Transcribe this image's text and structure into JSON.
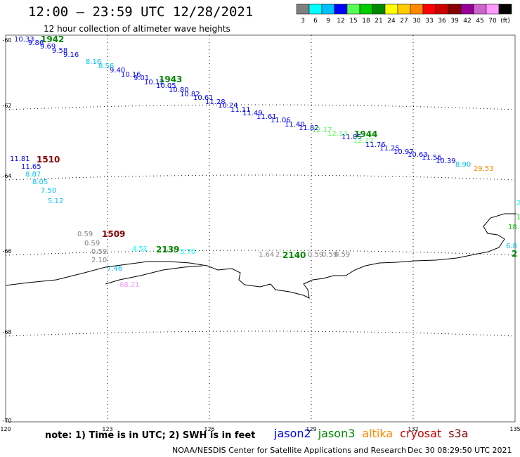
{
  "header": {
    "title": "12:00 – 23:59 UTC 12/28/2021",
    "subtitle": "12 hour collection of altimeter wave heights"
  },
  "colorbar": {
    "colors": [
      "#808080",
      "#00ffff",
      "#00bfff",
      "#0000ff",
      "#55ff55",
      "#00cc00",
      "#008800",
      "#ffff00",
      "#ffcc00",
      "#ff8800",
      "#ff0000",
      "#cc0000",
      "#880000",
      "#990099",
      "#cc66cc",
      "#ff99ff",
      "#000000"
    ],
    "labels": [
      "3",
      "6",
      "9",
      "12",
      "15",
      "18",
      "21",
      "24",
      "27",
      "30",
      "33",
      "36",
      "39",
      "42",
      "45",
      "70",
      "(ft)"
    ]
  },
  "axes": {
    "lat_labels": [
      "-60",
      "-62",
      "-64",
      "-66",
      "-68",
      "-70"
    ],
    "lon_labels": [
      "120",
      "123",
      "126",
      "129",
      "132",
      "135"
    ]
  },
  "passes": [
    {
      "label": "1942",
      "color": "#008800"
    },
    {
      "label": "1943",
      "color": "#008800"
    },
    {
      "label": "1944",
      "color": "#008800"
    },
    {
      "label": "1510",
      "color": "#880000"
    },
    {
      "label": "1509",
      "color": "#880000"
    },
    {
      "label": "2139",
      "color": "#008800"
    },
    {
      "label": "2140",
      "color": "#008800"
    },
    {
      "label": "2",
      "color": "#008800"
    }
  ],
  "wave_heights": [
    {
      "text": "10.33",
      "color": "#0000ff"
    },
    {
      "text": "9.86",
      "color": "#0000ff"
    },
    {
      "text": "9.69",
      "color": "#0000ff"
    },
    {
      "text": "9.58",
      "color": "#0000ff"
    },
    {
      "text": "9.16",
      "color": "#0000ff"
    },
    {
      "text": "8.16",
      "color": "#00bfff"
    },
    {
      "text": "8.56",
      "color": "#00bfff"
    },
    {
      "text": "9.40",
      "color": "#0000ff"
    },
    {
      "text": "10.16",
      "color": "#0000ff"
    },
    {
      "text": "9.01",
      "color": "#0000ff"
    },
    {
      "text": "10.12",
      "color": "#0000ff"
    },
    {
      "text": "10.05",
      "color": "#0000ff"
    },
    {
      "text": "10.80",
      "color": "#0000ff"
    },
    {
      "text": "10.82",
      "color": "#0000ff"
    },
    {
      "text": "10.61",
      "color": "#0000ff"
    },
    {
      "text": "11.28",
      "color": "#0000ff"
    },
    {
      "text": "10.24",
      "color": "#0000ff"
    },
    {
      "text": "11.11",
      "color": "#0000ff"
    },
    {
      "text": "11.49",
      "color": "#0000ff"
    },
    {
      "text": "11.61",
      "color": "#0000ff"
    },
    {
      "text": "11.06",
      "color": "#0000ff"
    },
    {
      "text": "11.40",
      "color": "#0000ff"
    },
    {
      "text": "11.82",
      "color": "#0000ff"
    },
    {
      "text": "12.17",
      "color": "#55ff55"
    },
    {
      "text": "12.13",
      "color": "#55ff55"
    },
    {
      "text": "11.85",
      "color": "#0000ff"
    },
    {
      "text": "12.22",
      "color": "#55ff55"
    },
    {
      "text": "11.76",
      "color": "#0000ff"
    },
    {
      "text": "11.25",
      "color": "#0000ff"
    },
    {
      "text": "10.97",
      "color": "#0000ff"
    },
    {
      "text": "10.63",
      "color": "#0000ff"
    },
    {
      "text": "11.56",
      "color": "#0000ff"
    },
    {
      "text": "10.39",
      "color": "#0000ff"
    },
    {
      "text": "8.90",
      "color": "#00bfff"
    },
    {
      "text": "29.53",
      "color": "#ff8800"
    },
    {
      "text": "11.81",
      "color": "#0000ff"
    },
    {
      "text": "11.65",
      "color": "#0000ff"
    },
    {
      "text": "8.87",
      "color": "#00bfff"
    },
    {
      "text": "8.05",
      "color": "#00bfff"
    },
    {
      "text": "7.50",
      "color": "#00bfff"
    },
    {
      "text": "5.12",
      "color": "#00bfff"
    },
    {
      "text": "0.59",
      "color": "#808080"
    },
    {
      "text": "0.59",
      "color": "#808080"
    },
    {
      "text": "0.59",
      "color": "#808080"
    },
    {
      "text": "2.10",
      "color": "#808080"
    },
    {
      "text": "7.46",
      "color": "#00bfff"
    },
    {
      "text": "68.21",
      "color": "#ff99ff"
    },
    {
      "text": "4.51",
      "color": "#00ffff"
    },
    {
      "text": "3.70",
      "color": "#00ffff"
    },
    {
      "text": "1.64",
      "color": "#808080"
    },
    {
      "text": "2.",
      "color": "#808080"
    },
    {
      "text": "0.59",
      "color": "#808080"
    },
    {
      "text": "0.59",
      "color": "#808080"
    },
    {
      "text": "0.59",
      "color": "#808080"
    },
    {
      "text": "2",
      "color": "#00ffff"
    },
    {
      "text": "1",
      "color": "#00cc00"
    },
    {
      "text": "18.",
      "color": "#00cc00"
    },
    {
      "text": "6.8",
      "color": "#00bfff"
    }
  ],
  "footer": {
    "note": "note: 1) Time is in UTC; 2) SWH is in feet",
    "legend": [
      {
        "name": "jason2",
        "color": "#0000ff"
      },
      {
        "name": "jason3",
        "color": "#008800"
      },
      {
        "name": "altika",
        "color": "#ff8800"
      },
      {
        "name": "cryosat",
        "color": "#cc0000"
      },
      {
        "name": "s3a",
        "color": "#880000"
      }
    ],
    "credit_org": "NOAA/NESDIS Center for Satellite Applications and Research",
    "credit_time": "Dec 30 08:29:50 UTC 2021"
  }
}
